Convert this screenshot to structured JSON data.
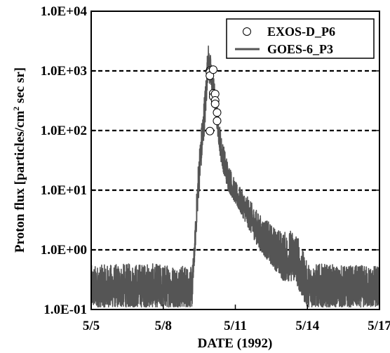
{
  "chart_data": {
    "type": "line",
    "xlabel": "DATE (1992)",
    "ylabel_main": "Proton flux [particles/cm",
    "ylabel_sup": "2",
    "ylabel_tail": " sec sr]",
    "yscale": "log",
    "ylim": [
      0.1,
      10000
    ],
    "xlim": [
      "1992-05-05",
      "1992-05-17"
    ],
    "y_ticks": [
      {
        "value": 0.1,
        "label": "1.0E-01"
      },
      {
        "value": 1,
        "label": "1.0E+00"
      },
      {
        "value": 10,
        "label": "1.0E+01"
      },
      {
        "value": 100,
        "label": "1.0E+02"
      },
      {
        "value": 1000,
        "label": "1.0E+03"
      },
      {
        "value": 10000,
        "label": "1.0E+04"
      }
    ],
    "x_ticks": [
      {
        "date": "1992-05-05",
        "label": "5/5"
      },
      {
        "date": "1992-05-08",
        "label": "5/8"
      },
      {
        "date": "1992-05-11",
        "label": "5/11"
      },
      {
        "date": "1992-05-14",
        "label": "5/14"
      },
      {
        "date": "1992-05-17",
        "label": "5/17"
      }
    ],
    "grid": "horizontal dashed at 1.0E+00, 1.0E+01, 1.0E+02, 1.0E+03",
    "legend_position": "top-right",
    "colors": {
      "goes_line": "#555555",
      "exos_marker_edge": "#000000",
      "exos_marker_fill": "#ffffff"
    },
    "series": [
      {
        "name": "EXOS-D_P6",
        "marker": "open-circle",
        "points": [
          {
            "x": "1992-05-09 22:34",
            "y": 1000
          },
          {
            "x": "1992-05-09 22:34",
            "y": 1000
          },
          {
            "x": "1992-05-09 22:34",
            "y": 950
          },
          {
            "x": "1992-05-09 22:34",
            "y": 830
          },
          {
            "x": "1992-05-09 22:34",
            "y": 98
          },
          {
            "x": "1992-05-10 01:55",
            "y": 1050
          },
          {
            "x": "1992-05-10 01:55",
            "y": 420
          },
          {
            "x": "1992-05-10 01:55",
            "y": 370
          },
          {
            "x": "1992-05-10 03:50",
            "y": 410
          },
          {
            "x": "1992-05-10 03:50",
            "y": 320
          },
          {
            "x": "1992-05-10 03:50",
            "y": 280
          },
          {
            "x": "1992-05-10 05:46",
            "y": 200
          },
          {
            "x": "1992-05-10 05:46",
            "y": 145
          }
        ]
      },
      {
        "name": "GOES-6_P3",
        "style": "line",
        "envelope": [
          {
            "x": "1992-05-05 00:00",
            "y_low": 0.11,
            "y_high": 0.55
          },
          {
            "x": "1992-05-07 00:00",
            "y_low": 0.11,
            "y_high": 0.6
          },
          {
            "x": "1992-05-09 00:00",
            "y_low": 0.11,
            "y_high": 0.55
          },
          {
            "x": "1992-05-09 04:48",
            "y_low": 0.11,
            "y_high": 0.5
          },
          {
            "x": "1992-05-09 07:12",
            "y_low": 0.6,
            "y_high": 1.5
          },
          {
            "x": "1992-05-09 10:34",
            "y_low": 5,
            "y_high": 25
          },
          {
            "x": "1992-05-09 13:26",
            "y_low": 20,
            "y_high": 100
          },
          {
            "x": "1992-05-09 15:50",
            "y_low": 50,
            "y_high": 250
          },
          {
            "x": "1992-05-09 18:14",
            "y_low": 150,
            "y_high": 700
          },
          {
            "x": "1992-05-09 20:38",
            "y_low": 800,
            "y_high": 3000
          },
          {
            "x": "1992-05-09 23:02",
            "y_low": 500,
            "y_high": 2000
          },
          {
            "x": "1992-05-10 02:24",
            "y_low": 300,
            "y_high": 800
          },
          {
            "x": "1992-05-10 05:46",
            "y_low": 100,
            "y_high": 300
          },
          {
            "x": "1992-05-10 09:36",
            "y_low": 30,
            "y_high": 90
          },
          {
            "x": "1992-05-10 12:00",
            "y_low": 20,
            "y_high": 60
          },
          {
            "x": "1992-05-10 16:48",
            "y_low": 10,
            "y_high": 30
          },
          {
            "x": "1992-05-11 00:00",
            "y_low": 6,
            "y_high": 14
          },
          {
            "x": "1992-05-11 09:36",
            "y_low": 3,
            "y_high": 9
          },
          {
            "x": "1992-05-12 00:00",
            "y_low": 1,
            "y_high": 4
          },
          {
            "x": "1992-05-12 14:24",
            "y_low": 0.5,
            "y_high": 2.5
          },
          {
            "x": "1992-05-13 00:00",
            "y_low": 0.3,
            "y_high": 2
          },
          {
            "x": "1992-05-13 12:00",
            "y_low": 0.3,
            "y_high": 2.3
          },
          {
            "x": "1992-05-13 19:12",
            "y_low": 0.15,
            "y_high": 1
          },
          {
            "x": "1992-05-14 00:00",
            "y_low": 0.11,
            "y_high": 0.6
          },
          {
            "x": "1992-05-15 12:00",
            "y_low": 0.11,
            "y_high": 0.55
          },
          {
            "x": "1992-05-17 00:00",
            "y_low": 0.11,
            "y_high": 0.55
          }
        ]
      }
    ]
  }
}
